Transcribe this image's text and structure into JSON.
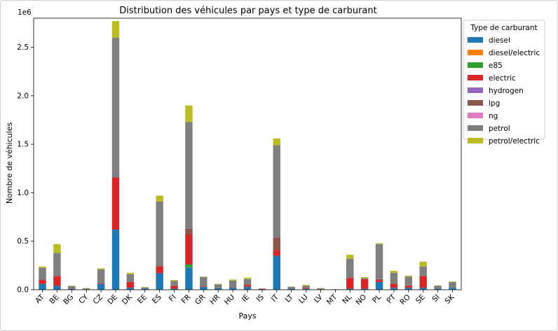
{
  "chart_data": {
    "type": "bar",
    "stacked": true,
    "title": "Distribution des véhicules par pays et type de carburant",
    "xlabel": "Pays",
    "ylabel": "Nombre de véhicules",
    "y_offset_label": "1e6",
    "ylim": [
      0,
      2.8
    ],
    "yticks": [
      0.0,
      0.5,
      1.0,
      1.5,
      2.0,
      2.5
    ],
    "ytick_labels": [
      "0.0",
      "0.5",
      "1.0",
      "1.5",
      "2.0",
      "2.5"
    ],
    "grid": false,
    "legend_title": "Type de carburant",
    "legend_position": "outside-right",
    "categories": [
      "AT",
      "BE",
      "BG",
      "CY",
      "CZ",
      "DE",
      "DK",
      "EE",
      "ES",
      "FI",
      "FR",
      "GR",
      "HR",
      "HU",
      "IE",
      "IS",
      "IT",
      "LT",
      "LU",
      "LV",
      "MT",
      "NL",
      "NO",
      "PL",
      "PT",
      "RO",
      "SE",
      "SI",
      "SK"
    ],
    "series": [
      {
        "name": "diesel",
        "color": "#1f77b4",
        "values": [
          0.06,
          0.04,
          0.01,
          0.005,
          0.06,
          0.62,
          0.02,
          0.01,
          0.17,
          0.01,
          0.23,
          0.03,
          0.015,
          0.02,
          0.03,
          0.003,
          0.35,
          0.01,
          0.01,
          0.005,
          0.002,
          0.01,
          0.01,
          0.08,
          0.02,
          0.02,
          0.02,
          0.01,
          0.02
        ]
      },
      {
        "name": "diesel/electric",
        "color": "#ff7f0e",
        "values": [
          0,
          0,
          0,
          0,
          0,
          0,
          0,
          0,
          0,
          0,
          0,
          0,
          0,
          0,
          0,
          0,
          0,
          0,
          0,
          0,
          0,
          0,
          0,
          0,
          0,
          0,
          0,
          0,
          0
        ]
      },
      {
        "name": "e85",
        "color": "#2ca02c",
        "values": [
          0,
          0,
          0,
          0,
          0,
          0,
          0,
          0,
          0,
          0,
          0.03,
          0,
          0,
          0,
          0,
          0,
          0,
          0,
          0,
          0,
          0,
          0,
          0,
          0,
          0,
          0,
          0,
          0,
          0
        ]
      },
      {
        "name": "electric",
        "color": "#d62728",
        "values": [
          0.04,
          0.1,
          0,
          0,
          0.005,
          0.54,
          0.06,
          0,
          0.07,
          0.03,
          0.31,
          0.005,
          0,
          0,
          0.02,
          0.005,
          0.06,
          0,
          0.01,
          0,
          0,
          0.11,
          0.1,
          0.02,
          0.04,
          0.02,
          0.12,
          0,
          0
        ]
      },
      {
        "name": "hydrogen",
        "color": "#9467bd",
        "values": [
          0,
          0,
          0,
          0,
          0,
          0,
          0,
          0,
          0,
          0,
          0,
          0,
          0,
          0,
          0,
          0,
          0,
          0,
          0,
          0,
          0,
          0,
          0,
          0,
          0,
          0,
          0,
          0,
          0
        ]
      },
      {
        "name": "lpg",
        "color": "#8c564b",
        "values": [
          0.005,
          0,
          0.002,
          0,
          0.005,
          0,
          0,
          0,
          0.01,
          0,
          0.06,
          0.005,
          0,
          0.005,
          0,
          0,
          0.13,
          0,
          0,
          0,
          0,
          0,
          0,
          0.01,
          0.005,
          0.005,
          0,
          0,
          0
        ]
      },
      {
        "name": "ng",
        "color": "#e377c2",
        "values": [
          0,
          0,
          0,
          0,
          0,
          0,
          0,
          0,
          0,
          0,
          0,
          0,
          0,
          0,
          0,
          0,
          0,
          0,
          0,
          0,
          0,
          0,
          0,
          0,
          0,
          0,
          0,
          0,
          0
        ]
      },
      {
        "name": "petrol",
        "color": "#7f7f7f",
        "values": [
          0.12,
          0.24,
          0.025,
          0.01,
          0.14,
          1.44,
          0.08,
          0.015,
          0.66,
          0.05,
          1.1,
          0.09,
          0.04,
          0.07,
          0.06,
          0.005,
          0.95,
          0.02,
          0.02,
          0.01,
          0.003,
          0.2,
          0.01,
          0.36,
          0.11,
          0.09,
          0.1,
          0.03,
          0.06
        ]
      },
      {
        "name": "petrol/electric",
        "color": "#bcbd22",
        "values": [
          0.015,
          0.09,
          0.005,
          0.002,
          0.01,
          0.17,
          0.015,
          0.002,
          0.06,
          0.01,
          0.17,
          0.005,
          0.005,
          0.01,
          0.015,
          0,
          0.07,
          0.002,
          0.01,
          0.002,
          0,
          0.04,
          0.01,
          0.01,
          0.02,
          0.01,
          0.05,
          0.005,
          0.005
        ]
      }
    ]
  }
}
